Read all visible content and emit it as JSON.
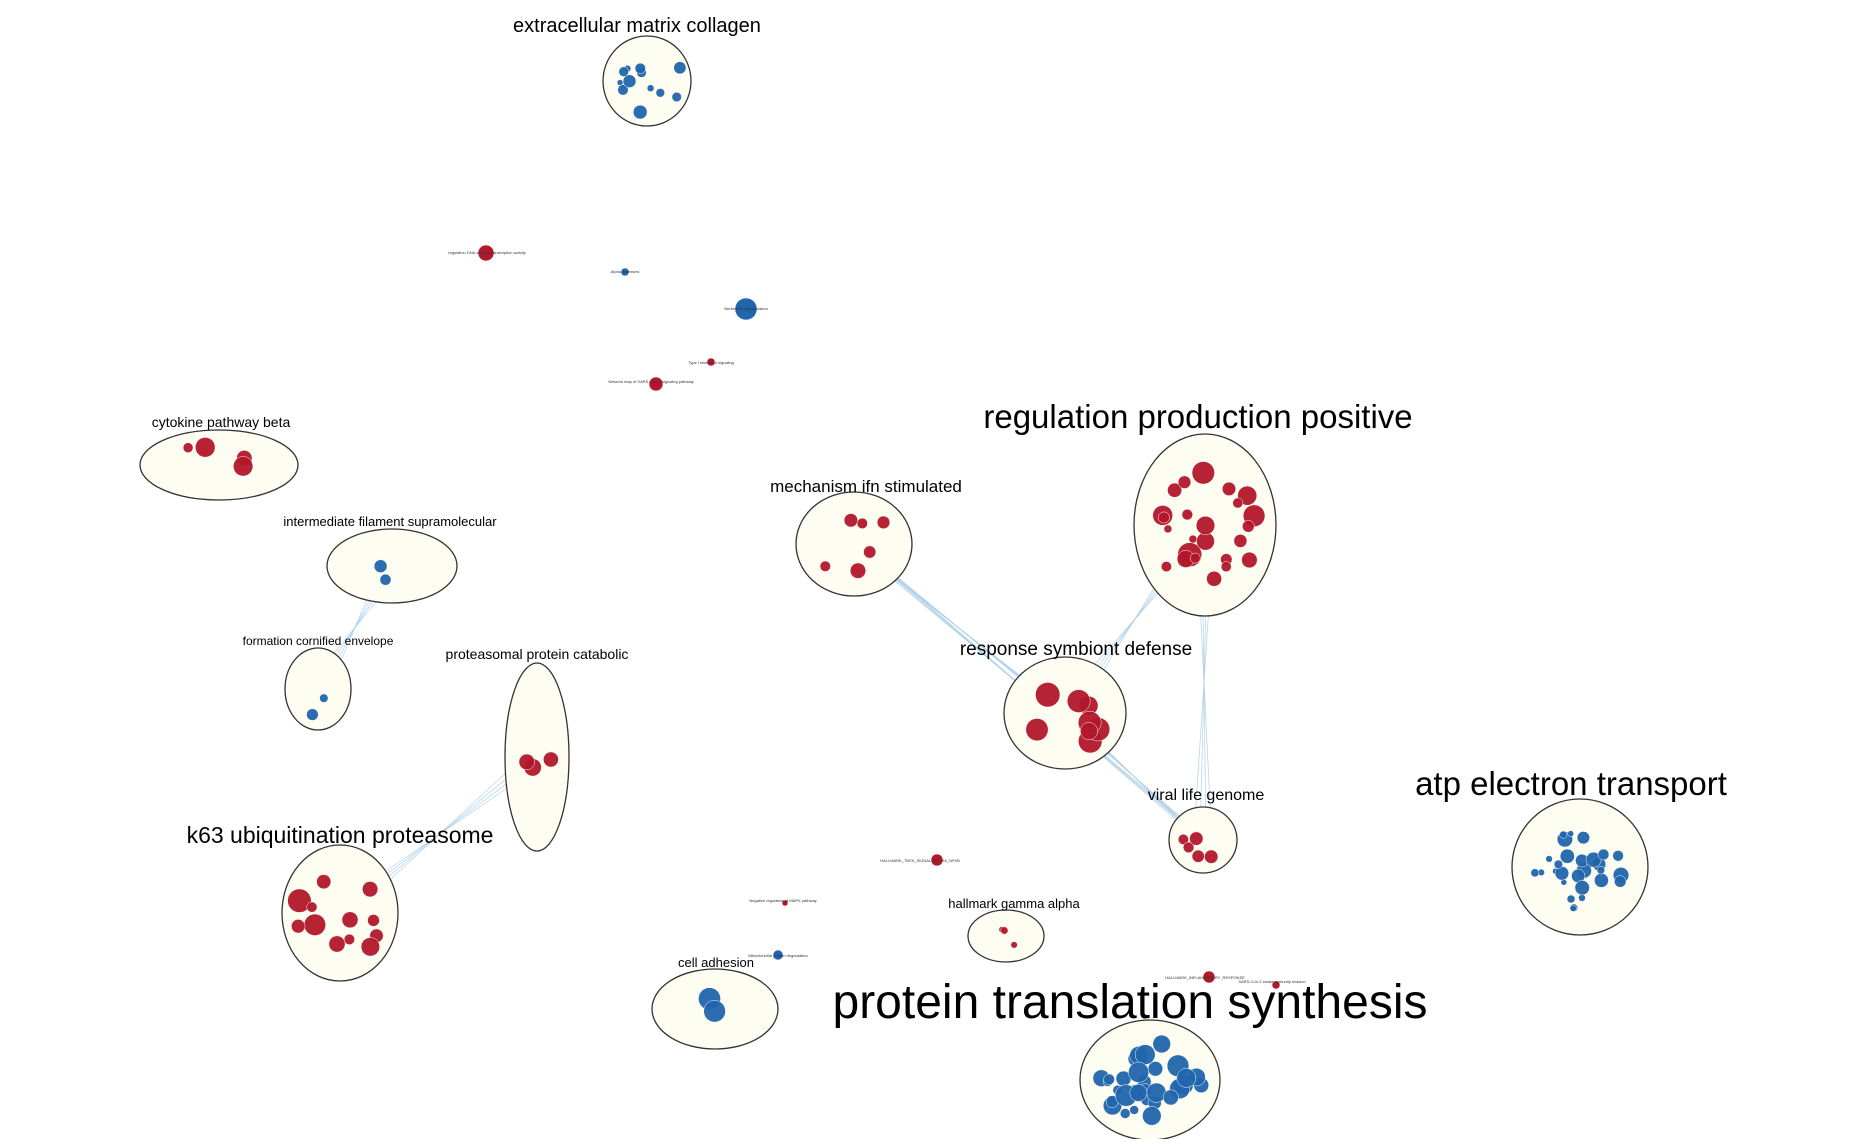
{
  "colors": {
    "up": "#b2182b",
    "down": "#2166ac",
    "cluster_fill": "#fdfdf1",
    "edge": "#a9cce6"
  },
  "clusters": [
    {
      "id": "ecm",
      "label": "extracellular matrix collagen"
    },
    {
      "id": "cytokine",
      "label": "cytokine pathway beta"
    },
    {
      "id": "interfil",
      "label": "intermediate filament supramolecular"
    },
    {
      "id": "cornified",
      "label": "formation cornified envelope"
    },
    {
      "id": "proteasomal",
      "label": "proteasomal protein catabolic"
    },
    {
      "id": "k63",
      "label": "k63 ubiquitination proteasome"
    },
    {
      "id": "ifn",
      "label": "mechanism ifn stimulated"
    },
    {
      "id": "regprod",
      "label": "regulation production positive"
    },
    {
      "id": "symbiont",
      "label": "response symbiont defense"
    },
    {
      "id": "viral",
      "label": "viral life genome"
    },
    {
      "id": "atp",
      "label": "atp electron transport"
    },
    {
      "id": "hallmark",
      "label": "hallmark gamma alpha"
    },
    {
      "id": "adhesion",
      "label": "cell adhesion"
    },
    {
      "id": "translation",
      "label": "protein translation synthesis"
    }
  ],
  "singletons": [
    {
      "id": "s1",
      "label": "regulation DNA-binding transcription activity",
      "color": "up"
    },
    {
      "id": "s2",
      "label": "Alpha-defensins",
      "color": "down"
    },
    {
      "id": "s3",
      "label": "Neutrophil degranulation",
      "color": "down"
    },
    {
      "id": "s4",
      "label": "Type I interferon signaling",
      "color": "up"
    },
    {
      "id": "s5",
      "label": "Network map of SARS-CoV-2 signaling pathway",
      "color": "up"
    },
    {
      "id": "s6",
      "label": "HALLMARK_TNFA_SIGNALING_VIA_NFKB",
      "color": "up"
    },
    {
      "id": "s7",
      "label": "Negative regulation of MAPK pathway",
      "color": "up"
    },
    {
      "id": "s8",
      "label": "Mitochondrial protein degradation",
      "color": "down"
    },
    {
      "id": "s9",
      "label": "HALLMARK_INFLAMMATORY_RESPONSE",
      "color": "up"
    },
    {
      "id": "s10",
      "label": "SARS-CoV-2 innate immunity evasion",
      "color": "up"
    }
  ]
}
